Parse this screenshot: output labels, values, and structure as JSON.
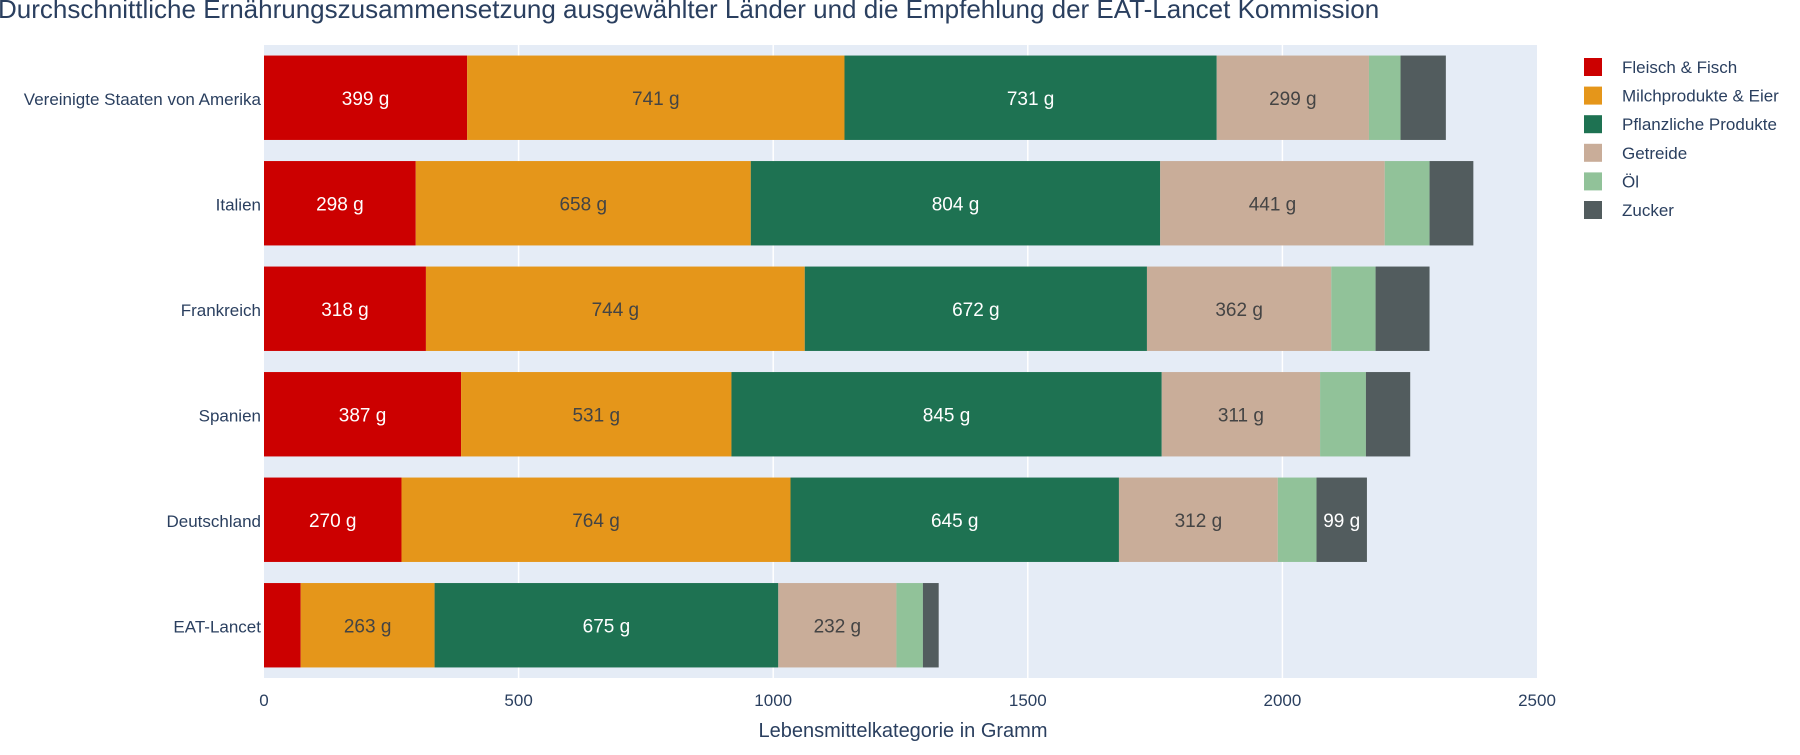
{
  "chart_data": {
    "type": "bar",
    "orientation": "horizontal",
    "stacked": true,
    "title": "Durchschnittliche Ernährungszusammensetzung ausgewählter Länder und die Empfehlung der EAT-Lancet Kommission",
    "xlabel": "Lebensmittelkategorie in Gramm",
    "ylabel": "",
    "xlim": [
      0,
      2500
    ],
    "x_ticks": [
      "0",
      "500",
      "1000",
      "1500",
      "2000",
      "2500"
    ],
    "grid": "vertical",
    "legend_position": "top-right",
    "plot_background": "#e5ecf6",
    "text_color": "#2a3f5f",
    "categories": [
      "Vereinigte Staaten von Amerika",
      "Italien",
      "Frankreich",
      "Spanien",
      "Deutschland",
      "EAT-Lancet"
    ],
    "series": [
      {
        "name": "Fleisch & Fisch",
        "color": "#cc0000",
        "label_color": "#ffffff",
        "values": [
          399,
          298,
          318,
          387,
          270,
          72
        ],
        "labels": [
          "399 g",
          "298 g",
          "318 g",
          "387 g",
          "270 g",
          ""
        ]
      },
      {
        "name": "Milchprodukte & Eier",
        "color": "#e5961a",
        "label_color": "#444444",
        "values": [
          741,
          658,
          744,
          531,
          764,
          263
        ],
        "labels": [
          "741 g",
          "658 g",
          "744 g",
          "531 g",
          "764 g",
          "263 g"
        ]
      },
      {
        "name": "Pflanzliche Produkte",
        "color": "#1e7252",
        "label_color": "#ffffff",
        "values": [
          731,
          804,
          672,
          845,
          645,
          675
        ],
        "labels": [
          "731 g",
          "804 g",
          "672 g",
          "845 g",
          "645 g",
          "675 g"
        ]
      },
      {
        "name": "Getreide",
        "color": "#c9ad99",
        "label_color": "#444444",
        "values": [
          299,
          441,
          362,
          311,
          312,
          232
        ],
        "labels": [
          "299 g",
          "441 g",
          "362 g",
          "311 g",
          "312 g",
          "232 g"
        ]
      },
      {
        "name": "Öl",
        "color": "#91c299",
        "label_color": "#444444",
        "values": [
          62,
          88,
          87,
          90,
          76,
          52
        ],
        "labels": [
          "",
          "",
          "",
          "",
          "",
          ""
        ]
      },
      {
        "name": "Zucker",
        "color": "#525c5e",
        "label_color": "#ffffff",
        "values": [
          89,
          86,
          106,
          87,
          99,
          31
        ],
        "labels": [
          "",
          "",
          "",
          "",
          "99 g",
          ""
        ]
      }
    ]
  }
}
